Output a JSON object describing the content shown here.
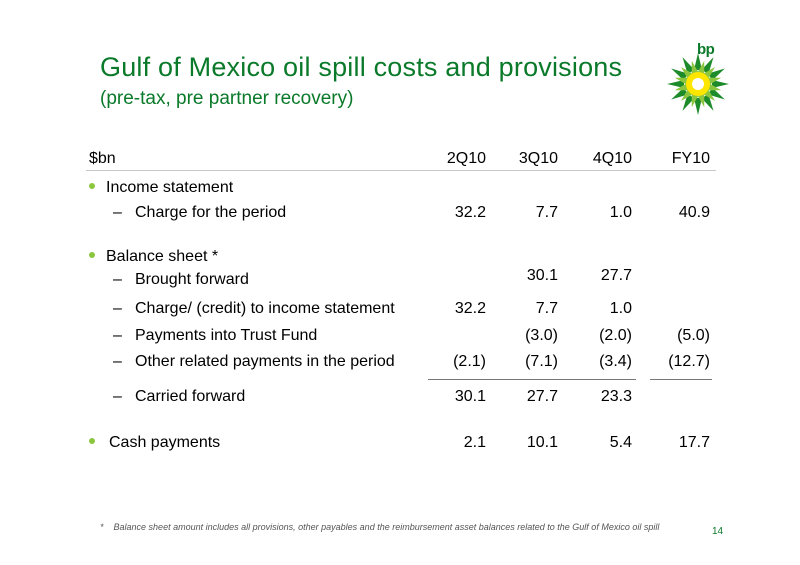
{
  "title": "Gulf of Mexico oil spill costs and provisions",
  "subtitle": "(pre-tax, pre partner recovery)",
  "logo_text": "bp",
  "table": {
    "unit_label": "$bn",
    "columns": [
      "2Q10",
      "3Q10",
      "4Q10",
      "FY10"
    ],
    "income_statement": {
      "label": "Income statement",
      "rows": [
        {
          "label": "Charge for the period",
          "values": [
            "32.2",
            "7.7",
            "1.0",
            "40.9"
          ]
        }
      ]
    },
    "balance_sheet": {
      "label": "Balance sheet *",
      "rows": [
        {
          "label": "Brought forward",
          "values": [
            "",
            "30.1",
            "27.7",
            ""
          ]
        },
        {
          "label": "Charge/ (credit) to income statement",
          "values": [
            "32.2",
            "7.7",
            "1.0",
            ""
          ]
        },
        {
          "label": "Payments into Trust Fund",
          "values": [
            "",
            "(3.0)",
            "(2.0)",
            "(5.0)"
          ]
        },
        {
          "label": "Other related payments in the period",
          "values": [
            "(2.1)",
            "(7.1)",
            "(3.4)",
            "(12.7)"
          ]
        },
        {
          "label": "Carried forward",
          "values": [
            "30.1",
            "27.7",
            "23.3",
            ""
          ]
        }
      ]
    },
    "cash_payments": {
      "label": "Cash payments",
      "values": [
        "2.1",
        "10.1",
        "5.4",
        "17.7"
      ]
    }
  },
  "footnote_marker": "*",
  "footnote": "Balance sheet amount includes all provisions, other payables and the reimbursement asset balances related to the Gulf of Mexico oil spill",
  "page_number": "14",
  "colors": {
    "accent": "#0a7a2a",
    "bullet": "#8cc63f",
    "logo_yellow": "#ffe600",
    "logo_green": "#5fb233"
  }
}
